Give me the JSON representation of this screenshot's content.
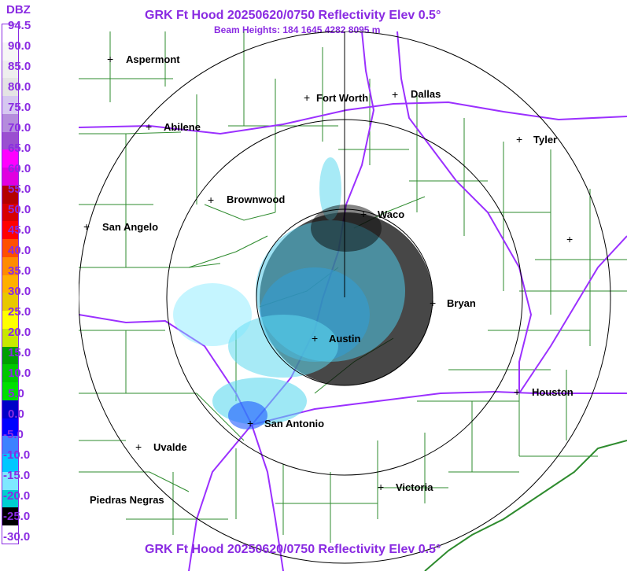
{
  "legend": {
    "title": "DBZ",
    "labels": [
      "94.5",
      "90.0",
      "85.0",
      "80.0",
      "75.0",
      "70.0",
      "65.0",
      "60.0",
      "55.0",
      "50.0",
      "45.0",
      "40.0",
      "35.0",
      "30.0",
      "25.0",
      "20.0",
      "15.0",
      "10.0",
      "5.0",
      "0.0",
      "-5.0",
      "-10.0",
      "-15.0",
      "-20.0",
      "-25.0",
      "-30.0"
    ],
    "colors": [
      "#ffffff",
      "#f6f6f6",
      "#eeeeee",
      "#e4e4e4",
      "#d6c8f0",
      "#b48cdc",
      "#9a4fd0",
      "#ff00ff",
      "#e000e0",
      "#b40000",
      "#d80000",
      "#ff0000",
      "#ff5000",
      "#ff8c00",
      "#ffb000",
      "#e8c800",
      "#ffff00",
      "#c8e800",
      "#00a000",
      "#00c800",
      "#00e000",
      "#0000c8",
      "#0000ff",
      "#3c82ff",
      "#00c8ff",
      "#7ee8ff",
      "#00d0d0",
      "#000000",
      "#ffffff"
    ]
  },
  "header": {
    "title": "GRK Ft Hood 20250620/0750 Reflectivity Elev 0.5°",
    "subtitle": "Beam Heights: 184 1645 4282 8095 m"
  },
  "footer": {
    "title": "GRK Ft Hood 20250620/0750 Reflectivity Elev 0.5°"
  },
  "cities": [
    {
      "name": "Aspermont"
    },
    {
      "name": "Fort Worth"
    },
    {
      "name": "Dallas"
    },
    {
      "name": "Abilene"
    },
    {
      "name": "Tyler"
    },
    {
      "name": "Brownwood"
    },
    {
      "name": "Waco"
    },
    {
      "name": "San Angelo"
    },
    {
      "name": "Bryan"
    },
    {
      "name": "Austin"
    },
    {
      "name": "Houston"
    },
    {
      "name": "San Antonio"
    },
    {
      "name": "Uvalde"
    },
    {
      "name": "Victoria"
    },
    {
      "name": "Piedras Negras"
    },
    {
      "name": ""
    }
  ],
  "colors": {
    "accent": "#8a2be2",
    "county_lines": "#2e8b2e",
    "highways": "#9b30ff",
    "range_rings": "#000000"
  }
}
